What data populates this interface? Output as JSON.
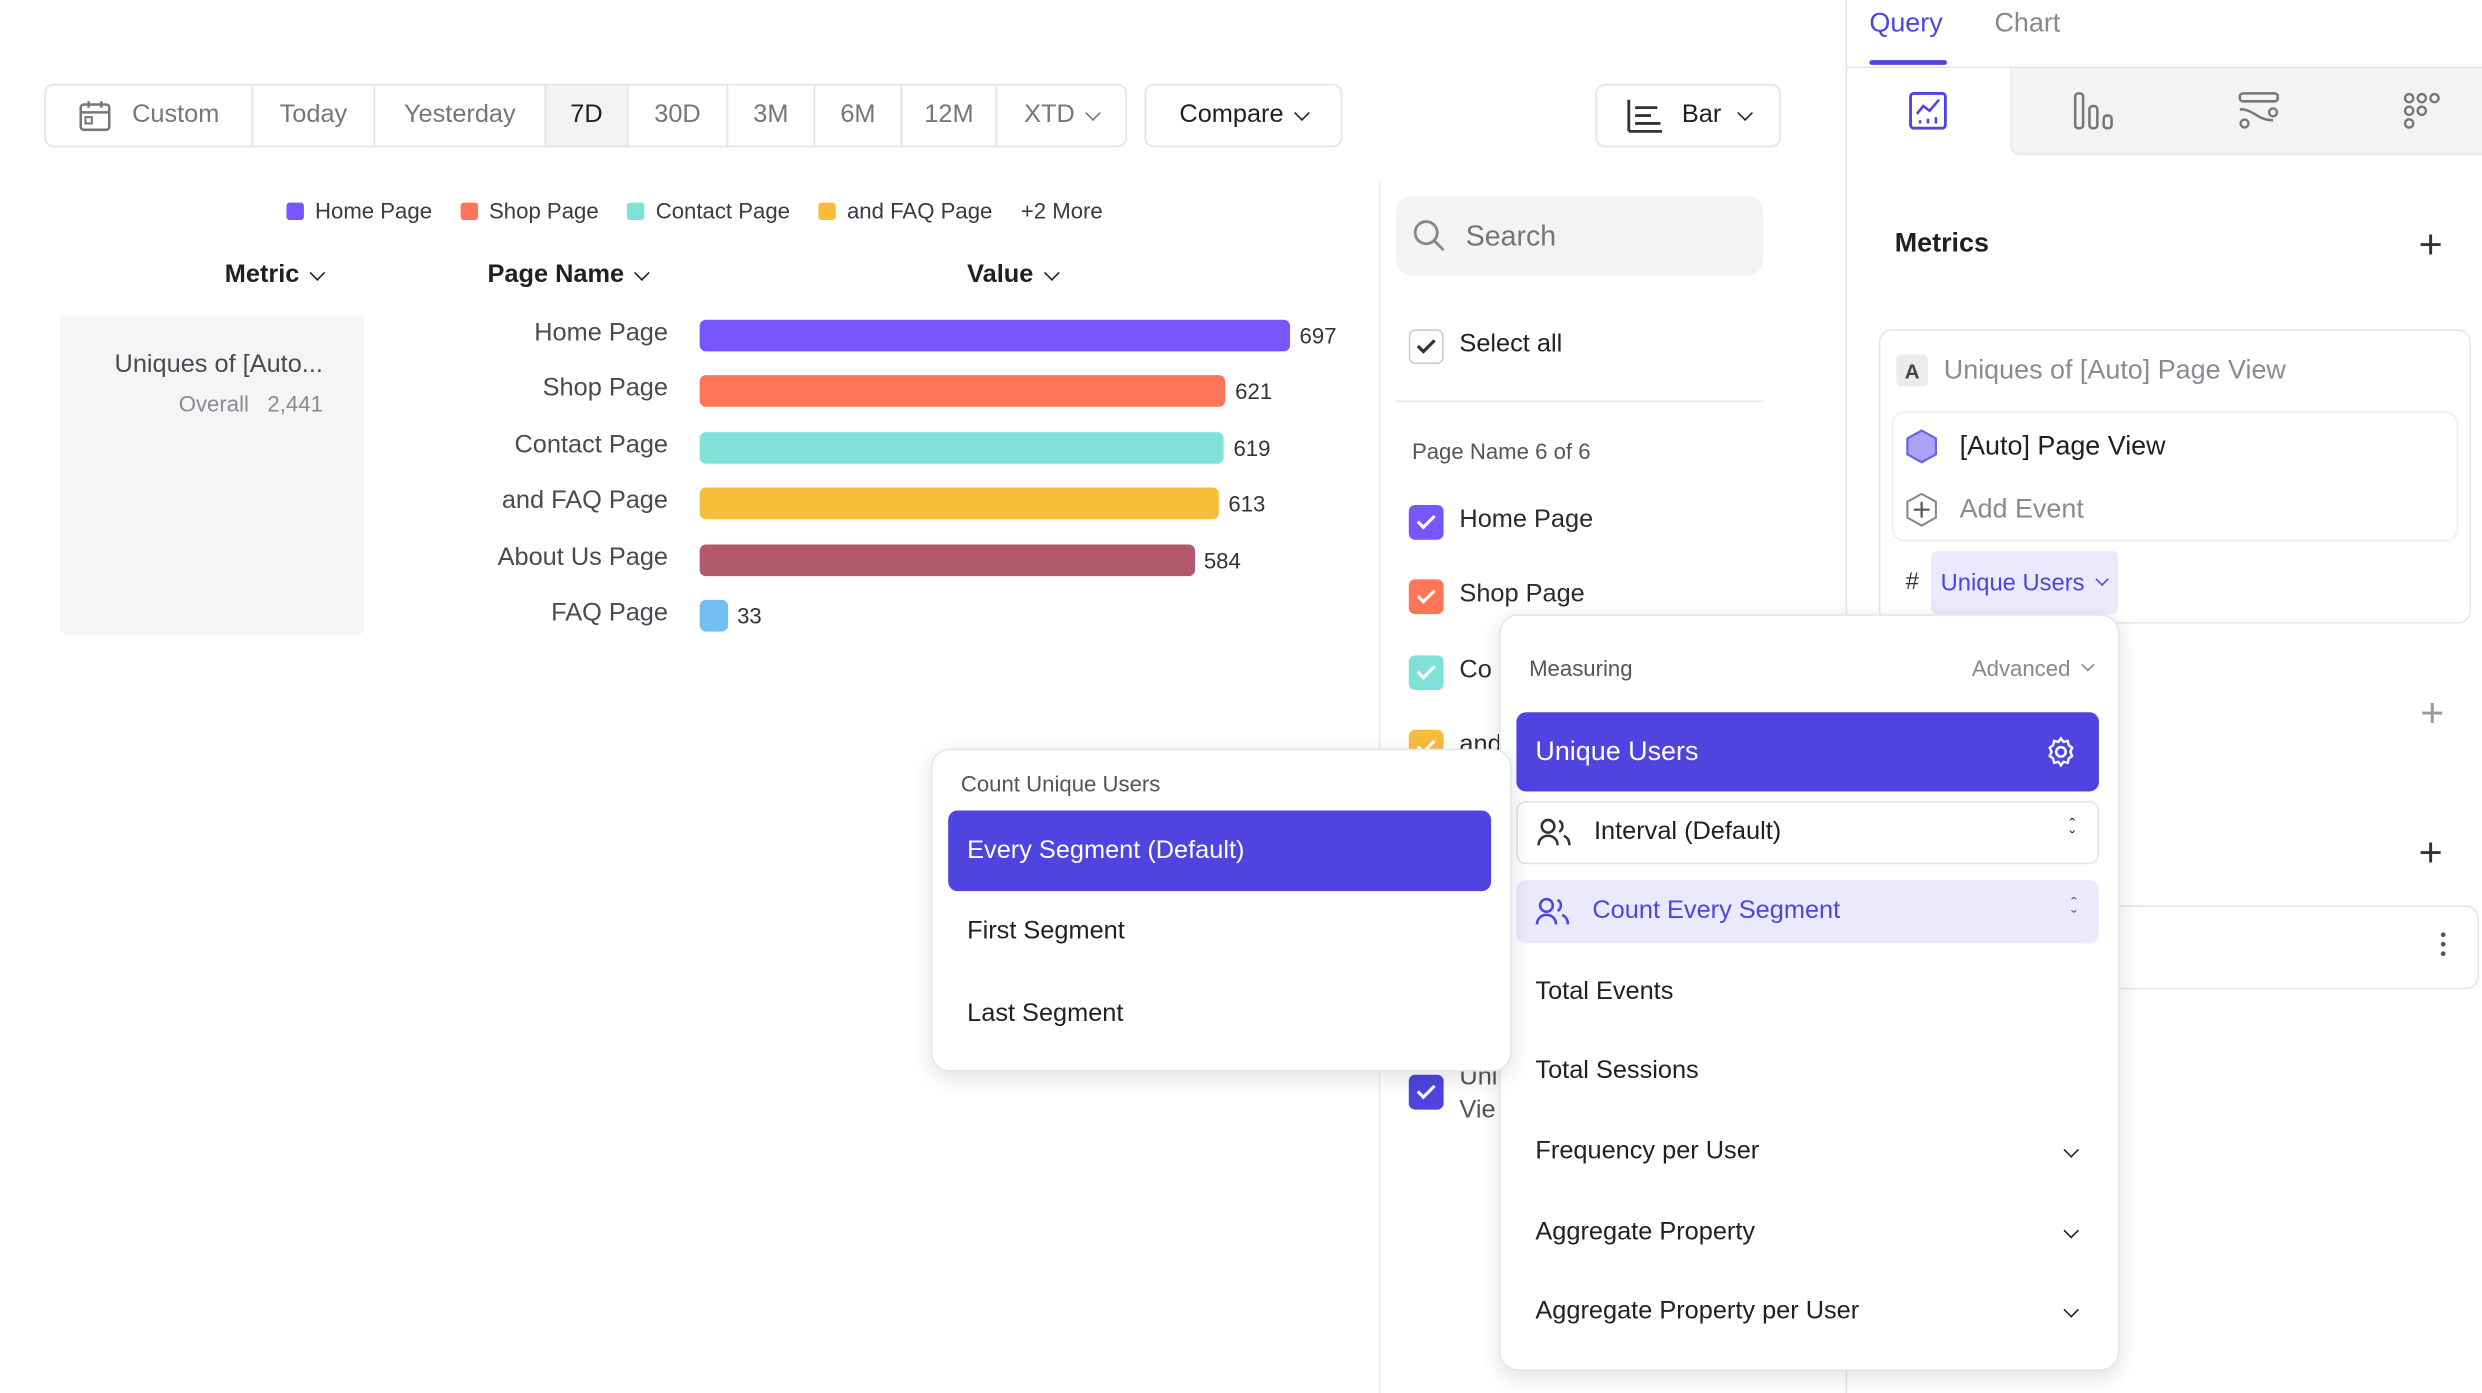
{
  "toolbar": {
    "date_ranges": [
      "Custom",
      "Today",
      "Yesterday",
      "7D",
      "30D",
      "3M",
      "6M",
      "12M",
      "XTD"
    ],
    "active_range": "7D",
    "compare_label": "Compare",
    "chart_type_label": "Bar"
  },
  "legend": {
    "items": [
      {
        "label": "Home Page",
        "color": "#7856ff"
      },
      {
        "label": "Shop Page",
        "color": "#ff7557"
      },
      {
        "label": "Contact Page",
        "color": "#80e1d9"
      },
      {
        "label": "and FAQ Page",
        "color": "#f8bc3b"
      }
    ],
    "more": "+2 More"
  },
  "table": {
    "headers": [
      "Metric",
      "Page Name",
      "Value"
    ],
    "metric_name": "Uniques of [Auto...",
    "overall_label": "Overall",
    "overall_value": "2,441"
  },
  "chart_data": {
    "type": "bar",
    "orientation": "horizontal",
    "categories": [
      "Home Page",
      "Shop Page",
      "Contact Page",
      "and FAQ Page",
      "About Us Page",
      "FAQ Page"
    ],
    "values": [
      697,
      621,
      619,
      613,
      584,
      33
    ],
    "colors": [
      "#7856ff",
      "#ff7557",
      "#80e1d9",
      "#f8bc3b",
      "#b2596e",
      "#72bef4"
    ]
  },
  "filter": {
    "search_placeholder": "Search",
    "select_all": "Select all",
    "group_label": "Page Name 6 of 6",
    "items": [
      {
        "label": "Home Page",
        "color": "#7856ff"
      },
      {
        "label": "Shop Page",
        "color": "#ff7557"
      },
      {
        "label": "Co",
        "color": "#80e1d9"
      },
      {
        "label": "and",
        "color": "#f8bc3b"
      }
    ],
    "partial_item": {
      "line1": "Uni",
      "line2": "Vie",
      "color": "#4f44e0"
    }
  },
  "panel": {
    "tabs": [
      "Query",
      "Chart"
    ],
    "active_tab": "Query",
    "metrics_title": "Metrics",
    "metric_badge": "A",
    "metric_title": "Uniques of [Auto] Page View",
    "event_name": "[Auto] Page View",
    "add_event": "Add Event",
    "measure_hash": "#",
    "measure_chip": "Unique Users"
  },
  "measuring_menu": {
    "title": "Measuring",
    "advanced": "Advanced",
    "selected": "Unique Users",
    "interval": "Interval (Default)",
    "count_mode": "Count Every Segment",
    "options": [
      "Total Events",
      "Total Sessions"
    ],
    "expandable": [
      "Frequency per User",
      "Aggregate Property",
      "Aggregate Property per User"
    ]
  },
  "count_menu": {
    "title": "Count Unique Users",
    "items": [
      "Every Segment (Default)",
      "First Segment",
      "Last Segment"
    ],
    "selected": "Every Segment (Default)"
  },
  "colors": {
    "accent": "#4f44e0",
    "accent_light": "#ebe9fc"
  }
}
